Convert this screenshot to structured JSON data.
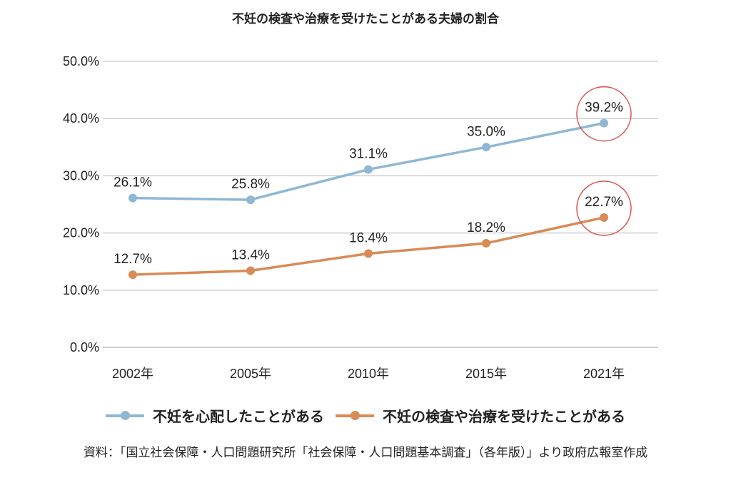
{
  "chart_data": {
    "type": "line",
    "title": "不妊の検査や治療を受けたことがある夫婦の割合",
    "categories": [
      "2002年",
      "2005年",
      "2010年",
      "2015年",
      "2021年"
    ],
    "series": [
      {
        "name": "不妊を心配したことがある",
        "values": [
          26.1,
          25.8,
          31.1,
          35.0,
          39.2
        ],
        "labels": [
          "26.1%",
          "25.8%",
          "31.1%",
          "35.0%",
          "39.2%"
        ],
        "color": "#8fb7d4"
      },
      {
        "name": "不妊の検査や治療を受けたことがある",
        "values": [
          12.7,
          13.4,
          16.4,
          18.2,
          22.7
        ],
        "labels": [
          "12.7%",
          "13.4%",
          "16.4%",
          "18.2%",
          "22.7%"
        ],
        "color": "#d98a55"
      }
    ],
    "ylim": [
      0,
      50
    ],
    "yticks": [
      "0.0%",
      "10.0%",
      "20.0%",
      "30.0%",
      "40.0%",
      "50.0%"
    ],
    "grid": true,
    "legend_position": "bottom",
    "highlight": "2021年",
    "highlight_color": "#d9534f"
  },
  "source": "資料：「国立社会保障・人口問題研究所「社会保障・人口問題基本調査」（各年版）」より政府広報室作成"
}
